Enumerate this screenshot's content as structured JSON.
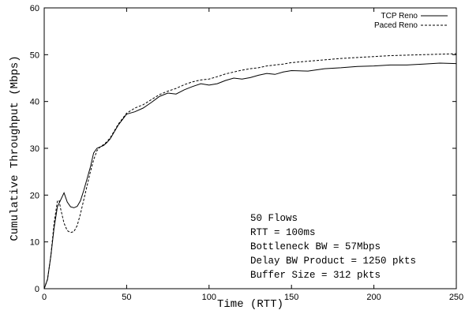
{
  "chart_data": {
    "type": "line",
    "xlabel": "Time (RTT)",
    "ylabel": "Cumulative Throughput (Mbps)",
    "xlim": [
      0,
      250
    ],
    "ylim": [
      0,
      60
    ],
    "xticks": [
      0,
      50,
      100,
      150,
      200,
      250
    ],
    "yticks": [
      0,
      10,
      20,
      30,
      40,
      50,
      60
    ],
    "grid": false,
    "legend_position": "top-right",
    "series": [
      {
        "name": "TCP Reno",
        "style": "solid",
        "x": [
          0,
          2,
          4,
          6,
          8,
          10,
          12,
          14,
          16,
          18,
          20,
          22,
          24,
          26,
          28,
          30,
          32,
          34,
          36,
          38,
          40,
          45,
          50,
          55,
          60,
          65,
          70,
          75,
          80,
          85,
          90,
          95,
          100,
          105,
          110,
          115,
          120,
          125,
          130,
          135,
          140,
          145,
          150,
          160,
          170,
          180,
          190,
          200,
          210,
          220,
          230,
          240,
          250
        ],
        "y": [
          0,
          2,
          7,
          13,
          17.5,
          19,
          20.5,
          18.5,
          17.5,
          17.3,
          17.6,
          18.8,
          21,
          23.5,
          26,
          29,
          30,
          30.3,
          30.6,
          31.2,
          32,
          35,
          37.3,
          37.8,
          38.6,
          39.8,
          41.1,
          41.8,
          41.6,
          42.5,
          43.2,
          43.8,
          43.5,
          43.8,
          44.5,
          45,
          44.8,
          45.1,
          45.6,
          46,
          45.8,
          46.3,
          46.6,
          46.5,
          47,
          47.2,
          47.5,
          47.6,
          47.8,
          47.8,
          48,
          48.2,
          48.1
        ]
      },
      {
        "name": "Paced Reno",
        "style": "dashed",
        "x": [
          0,
          2,
          4,
          6,
          8,
          9,
          10,
          12,
          14,
          16,
          18,
          20,
          22,
          24,
          26,
          28,
          30,
          32,
          34,
          36,
          38,
          40,
          45,
          50,
          55,
          60,
          65,
          70,
          75,
          80,
          85,
          90,
          95,
          100,
          105,
          110,
          115,
          120,
          125,
          130,
          135,
          140,
          145,
          150,
          160,
          170,
          180,
          190,
          200,
          210,
          220,
          230,
          240,
          250
        ],
        "y": [
          0,
          2,
          7,
          14,
          18.7,
          18.9,
          17,
          14,
          12.4,
          12,
          12.2,
          13.5,
          16,
          19,
          22,
          25,
          27.5,
          29.5,
          30.3,
          30.8,
          31.4,
          32.2,
          35.2,
          37.5,
          38.6,
          39.3,
          40.4,
          41.5,
          42.2,
          42.8,
          43.6,
          44.2,
          44.6,
          44.8,
          45.3,
          45.9,
          46.3,
          46.7,
          47,
          47.2,
          47.6,
          47.8,
          48,
          48.3,
          48.6,
          48.9,
          49.2,
          49.4,
          49.6,
          49.8,
          49.9,
          50,
          50.1,
          50.2
        ]
      }
    ],
    "annotations": [
      "50 Flows",
      "RTT = 100ms",
      "Bottleneck BW = 57Mbps",
      "Delay BW Product = 1250 pkts",
      "Buffer Size = 312 pkts"
    ]
  }
}
